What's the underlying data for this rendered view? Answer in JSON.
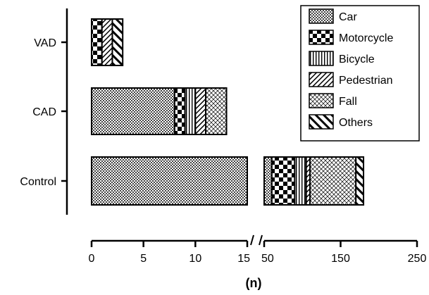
{
  "chart_data": {
    "type": "bar",
    "orientation": "horizontal",
    "stacked": true,
    "categories": [
      "VAD",
      "CAD",
      "Control"
    ],
    "series": [
      {
        "name": "Car",
        "pattern": "dots",
        "values": [
          0,
          8,
          60
        ]
      },
      {
        "name": "Motorcycle",
        "pattern": "checker",
        "values": [
          1,
          1,
          30
        ]
      },
      {
        "name": "Bicycle",
        "pattern": "vertical",
        "values": [
          0,
          1,
          15
        ]
      },
      {
        "name": "Pedestrian",
        "pattern": "diagonal",
        "values": [
          1,
          1,
          5
        ]
      },
      {
        "name": "Fall",
        "pattern": "crosshatch",
        "values": [
          0,
          2,
          60
        ]
      },
      {
        "name": "Others",
        "pattern": "diagonal-bold",
        "values": [
          1,
          0,
          10
        ]
      }
    ],
    "xlabel": "(n)",
    "ylabel": "",
    "x_axis": {
      "broken": true,
      "segments": [
        {
          "range": [
            0,
            15
          ],
          "ticks": [
            "0",
            "5",
            "10",
            "15"
          ]
        },
        {
          "range": [
            50,
            250
          ],
          "ticks": [
            "50",
            "150",
            "250"
          ]
        }
      ]
    },
    "legend": {
      "position": "top-right"
    },
    "grid": false
  }
}
